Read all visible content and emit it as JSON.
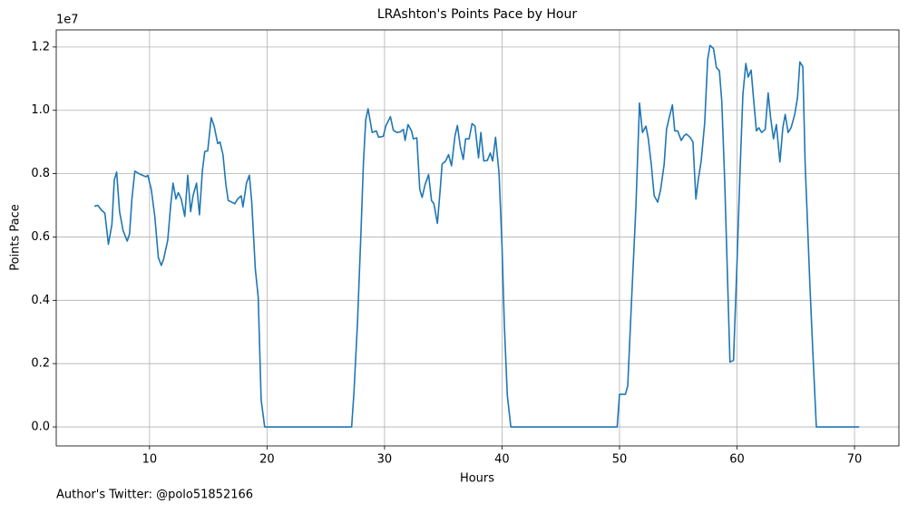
{
  "chart_data": {
    "type": "line",
    "title": "LRAshton's Points Pace by Hour",
    "xlabel": "Hours",
    "ylabel": "Points Pace",
    "y_offset_label": "1e7",
    "annotation": "Author's Twitter: @polo51852166",
    "color": "#1f77b4",
    "grid": true,
    "x": [
      5.3,
      5.6,
      5.9,
      6.2,
      6.5,
      6.8,
      7.0,
      7.2,
      7.45,
      7.75,
      8.1,
      8.3,
      8.5,
      8.75,
      9.1,
      9.4,
      9.7,
      9.85,
      10.15,
      10.45,
      10.75,
      11.0,
      11.2,
      11.55,
      11.8,
      12.0,
      12.25,
      12.45,
      12.7,
      13.0,
      13.25,
      13.5,
      13.7,
      14.0,
      14.25,
      14.5,
      14.7,
      14.95,
      15.25,
      15.5,
      15.8,
      16.0,
      16.25,
      16.5,
      16.7,
      17.0,
      17.25,
      17.5,
      17.8,
      17.95,
      18.25,
      18.5,
      18.7,
      19.0,
      19.25,
      19.5,
      19.8,
      27.2,
      27.4,
      27.7,
      28.0,
      28.2,
      28.4,
      28.6,
      28.95,
      29.3,
      29.5,
      29.9,
      30.1,
      30.5,
      30.75,
      31.05,
      31.35,
      31.6,
      31.75,
      32.0,
      32.3,
      32.45,
      32.75,
      33.0,
      33.2,
      33.45,
      33.75,
      34.0,
      34.2,
      34.5,
      34.75,
      34.9,
      35.2,
      35.45,
      35.7,
      36.0,
      36.2,
      36.45,
      36.7,
      36.9,
      37.2,
      37.45,
      37.7,
      38.0,
      38.2,
      38.45,
      38.75,
      39.0,
      39.2,
      39.45,
      39.75,
      40.0,
      40.2,
      40.45,
      40.75,
      49.8,
      50.0,
      50.5,
      50.7,
      51.0,
      51.4,
      51.7,
      51.95,
      52.25,
      52.45,
      52.7,
      52.95,
      53.25,
      53.5,
      53.8,
      54.0,
      54.25,
      54.5,
      54.7,
      54.95,
      55.25,
      55.5,
      55.7,
      56.0,
      56.25,
      56.5,
      56.7,
      56.95,
      57.25,
      57.5,
      57.7,
      58.0,
      58.25,
      58.5,
      58.7,
      58.95,
      59.2,
      59.4,
      59.7,
      60.0,
      60.25,
      60.5,
      60.75,
      60.95,
      61.2,
      61.4,
      61.65,
      61.85,
      62.1,
      62.4,
      62.65,
      62.85,
      63.1,
      63.35,
      63.65,
      63.9,
      64.1,
      64.35,
      64.6,
      64.9,
      65.15,
      65.35,
      65.6,
      65.8,
      65.95,
      66.2,
      66.45,
      66.75,
      70.4
    ],
    "values": [
      0.697,
      0.7,
      0.685,
      0.675,
      0.577,
      0.64,
      0.78,
      0.805,
      0.68,
      0.62,
      0.587,
      0.61,
      0.72,
      0.808,
      0.8,
      0.795,
      0.79,
      0.795,
      0.75,
      0.664,
      0.535,
      0.51,
      0.53,
      0.59,
      0.7,
      0.77,
      0.72,
      0.74,
      0.72,
      0.665,
      0.795,
      0.68,
      0.73,
      0.77,
      0.67,
      0.81,
      0.87,
      0.872,
      0.977,
      0.95,
      0.895,
      0.9,
      0.86,
      0.765,
      0.715,
      0.71,
      0.705,
      0.72,
      0.73,
      0.695,
      0.77,
      0.795,
      0.71,
      0.5,
      0.41,
      0.085,
      0.0,
      0.0,
      0.11,
      0.33,
      0.62,
      0.83,
      0.97,
      1.005,
      0.93,
      0.935,
      0.915,
      0.918,
      0.95,
      0.98,
      0.937,
      0.93,
      0.932,
      0.94,
      0.905,
      0.955,
      0.935,
      0.91,
      0.913,
      0.75,
      0.725,
      0.765,
      0.797,
      0.715,
      0.705,
      0.643,
      0.755,
      0.83,
      0.84,
      0.86,
      0.825,
      0.92,
      0.952,
      0.885,
      0.845,
      0.91,
      0.91,
      0.958,
      0.95,
      0.85,
      0.93,
      0.84,
      0.842,
      0.865,
      0.84,
      0.915,
      0.8,
      0.57,
      0.32,
      0.1,
      0.0,
      0.0,
      0.103,
      0.103,
      0.13,
      0.38,
      0.7,
      1.023,
      0.93,
      0.95,
      0.91,
      0.83,
      0.73,
      0.71,
      0.75,
      0.83,
      0.94,
      0.98,
      1.017,
      0.935,
      0.935,
      0.905,
      0.92,
      0.925,
      0.915,
      0.9,
      0.72,
      0.78,
      0.84,
      0.96,
      1.16,
      1.205,
      1.195,
      1.135,
      1.125,
      1.03,
      0.78,
      0.46,
      0.205,
      0.21,
      0.52,
      0.8,
      1.05,
      1.148,
      1.105,
      1.127,
      1.04,
      0.935,
      0.945,
      0.93,
      0.94,
      1.055,
      0.98,
      0.91,
      0.955,
      0.837,
      0.945,
      0.987,
      0.93,
      0.945,
      0.985,
      1.04,
      1.153,
      1.138,
      0.83,
      0.69,
      0.45,
      0.24,
      0.0,
      0.0
    ],
    "xlim": [
      2.06,
      73.78
    ],
    "xticks": [
      10,
      20,
      30,
      40,
      50,
      60,
      70
    ],
    "ylim": [
      -0.06,
      1.254
    ],
    "yticks": [
      {
        "value": 0,
        "label": "0.0"
      },
      0.2,
      0.4,
      0.6,
      0.8,
      {
        "value": 1,
        "label": "1.0"
      },
      1.2
    ]
  }
}
